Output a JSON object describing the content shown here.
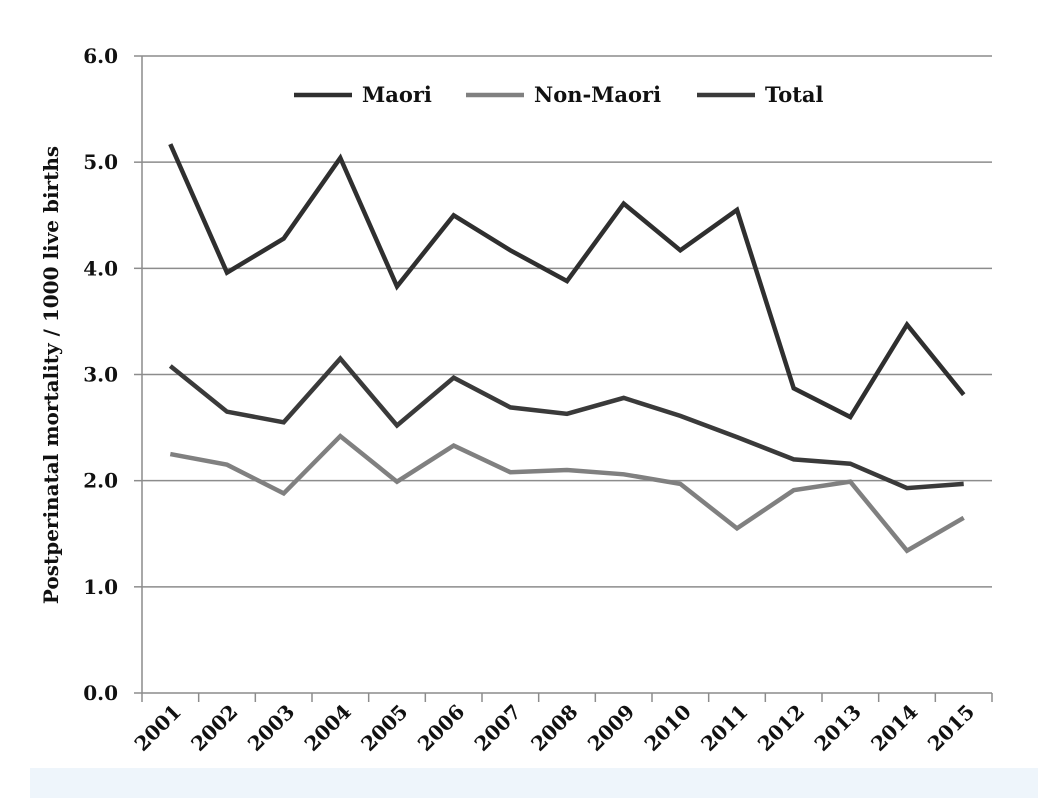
{
  "chart_data": {
    "type": "line",
    "title": "",
    "xlabel": "",
    "ylabel": "Postperinatal mortality / 1000 live births",
    "categories": [
      "2001",
      "2002",
      "2003",
      "2004",
      "2005",
      "2006",
      "2007",
      "2008",
      "2009",
      "2010",
      "2011",
      "2012",
      "2013",
      "2014",
      "2015"
    ],
    "ylim": [
      0,
      6
    ],
    "yticks": [
      "0.0",
      "1.0",
      "2.0",
      "3.0",
      "4.0",
      "5.0",
      "6.0"
    ],
    "grid": true,
    "legend_position": "top-center",
    "series": [
      {
        "name": "Maori",
        "color": "#2f2f2f",
        "values": [
          5.17,
          3.96,
          4.28,
          5.04,
          3.83,
          4.5,
          4.17,
          3.88,
          4.61,
          4.17,
          4.55,
          2.87,
          2.6,
          3.47,
          2.81
        ]
      },
      {
        "name": "Non-Maori",
        "color": "#808080",
        "values": [
          2.25,
          2.15,
          1.88,
          2.42,
          1.99,
          2.33,
          2.08,
          2.1,
          2.06,
          1.97,
          1.55,
          1.91,
          1.99,
          1.34,
          1.65
        ]
      },
      {
        "name": "Total",
        "color": "#3a3a3a",
        "values": [
          3.08,
          2.65,
          2.55,
          3.15,
          2.52,
          2.97,
          2.69,
          2.63,
          2.78,
          2.61,
          2.41,
          2.2,
          2.16,
          1.93,
          1.97
        ]
      }
    ]
  }
}
